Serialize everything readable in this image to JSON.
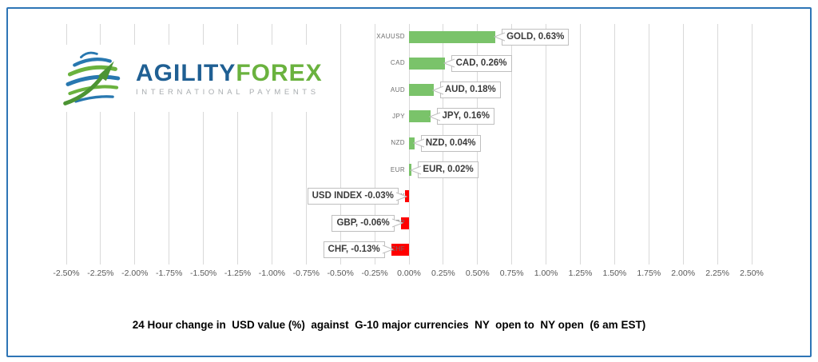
{
  "window": {
    "background": "#ffffff",
    "frame_border_color": "#2E75B6"
  },
  "logo": {
    "brand_primary": "AGILITY",
    "brand_secondary": "FOREX",
    "tagline": "INTERNATIONAL PAYMENTS",
    "primary_color": "#1f5f93",
    "secondary_color": "#6ab23e",
    "tagline_color": "#a9adb0",
    "icon": "globe-arrow-icon"
  },
  "chart_data": {
    "type": "bar",
    "orientation": "horizontal",
    "title": "24 Hour change in  USD value (%)  against  G-10 major currencies  NY  open to  NY open  (6 am EST)",
    "categories": [
      "XAUUSD",
      "CAD",
      "AUD",
      "JPY",
      "NZD",
      "EUR",
      "USD INDEX",
      "GBP",
      "CHF"
    ],
    "values": [
      0.63,
      0.26,
      0.18,
      0.16,
      0.04,
      0.02,
      -0.03,
      -0.06,
      -0.13
    ],
    "data_labels": [
      "GOLD, 0.63%",
      "CAD, 0.26%",
      "AUD, 0.18%",
      "JPY, 0.16%",
      "NZD, 0.04%",
      "EUR, 0.02%",
      "USD INDEX -0.03%",
      "GBP, -0.06%",
      "CHF, -0.13%"
    ],
    "xlim": [
      -2.5,
      2.5
    ],
    "tick_step": 0.25,
    "tick_labels": [
      "-2.50%",
      "-2.25%",
      "-2.00%",
      "-1.75%",
      "-1.50%",
      "-1.25%",
      "-1.00%",
      "-0.75%",
      "-0.50%",
      "-0.25%",
      "0.00%",
      "0.25%",
      "0.50%",
      "0.75%",
      "1.00%",
      "1.25%",
      "1.50%",
      "1.75%",
      "2.00%",
      "2.25%",
      "2.50%"
    ],
    "grid": true,
    "legend": false,
    "positive_color": "#7AC36A",
    "negative_color": "#FF0000",
    "gridline_color": "#D9D9D9",
    "tick_color": "#595959",
    "category_color": "#6e6e6e",
    "label_text_color": "#3b3b3b",
    "label_border_color": "#BFBFBF"
  }
}
